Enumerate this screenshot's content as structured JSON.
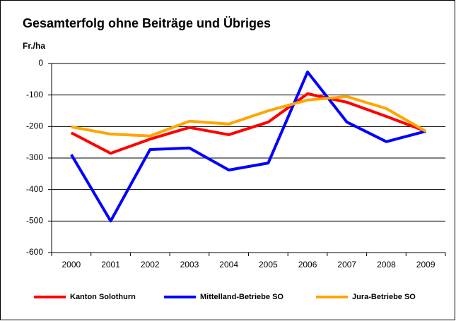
{
  "chart_data": {
    "type": "line",
    "title": "Gesamterfolg ohne Beiträge und Übriges",
    "y_label": "Fr./ha",
    "categories": [
      "2000",
      "2001",
      "2002",
      "2003",
      "2004",
      "2005",
      "2006",
      "2007",
      "2008",
      "2009"
    ],
    "series": [
      {
        "name": "Kanton Solothurn",
        "color": "#ff0000",
        "values": [
          -220,
          -285,
          -240,
          -203,
          -226,
          -186,
          -96,
          -123,
          -168,
          -215
        ]
      },
      {
        "name": "Mittelland-Betriebe SO",
        "color": "#0000ff",
        "values": [
          -289,
          -500,
          -273,
          -268,
          -338,
          -316,
          -27,
          -186,
          -248,
          -215
        ]
      },
      {
        "name": "Jura-Betriebe SO",
        "color": "#ffa500",
        "values": [
          -201,
          -224,
          -230,
          -183,
          -192,
          -150,
          -116,
          -105,
          -143,
          -215
        ]
      }
    ],
    "ylim": [
      -600,
      0
    ],
    "yticks": [
      0,
      -100,
      -200,
      -300,
      -400,
      -500,
      -600
    ],
    "grid": true,
    "legend": "bottom"
  }
}
